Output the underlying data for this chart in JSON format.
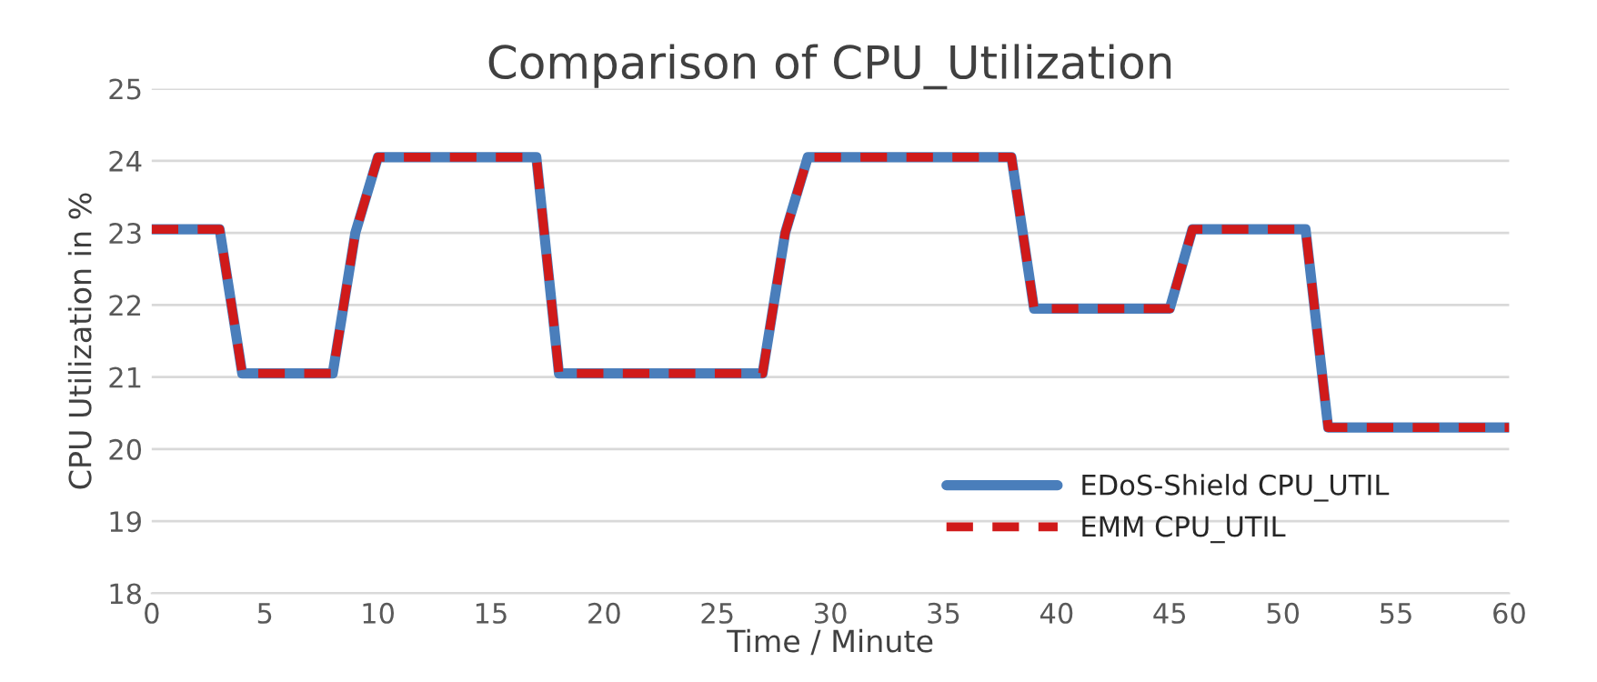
{
  "chart_data": {
    "type": "line",
    "title": "Comparison of CPU_Utilization",
    "xlabel": "Time / Minute",
    "ylabel": "CPU Utilization in %",
    "x": [
      0,
      3,
      4,
      8,
      9,
      10,
      17,
      18,
      27,
      28,
      29,
      38,
      39,
      45,
      46,
      51,
      52,
      60
    ],
    "series": [
      {
        "name": "EDoS-Shield CPU_UTIL",
        "color": "#4a7ebb",
        "line_style": "solid",
        "values": [
          23.05,
          23.05,
          21.05,
          21.05,
          23,
          24.05,
          24.05,
          21.05,
          21.05,
          23,
          24.05,
          24.05,
          21.95,
          21.95,
          23.05,
          23.05,
          20.3,
          20.3
        ]
      },
      {
        "name": "EMM CPU_UTIL",
        "color": "#d01a1a",
        "line_style": "dashed",
        "values": [
          23.05,
          23.05,
          21.05,
          21.05,
          23,
          24.05,
          24.05,
          21.05,
          21.05,
          23,
          24.05,
          24.05,
          21.95,
          21.95,
          23.05,
          23.05,
          20.3,
          20.3
        ]
      }
    ],
    "xlim": [
      0,
      60
    ],
    "xticks": [
      0,
      5,
      10,
      15,
      20,
      25,
      30,
      35,
      40,
      45,
      50,
      55,
      60
    ],
    "ylim": [
      18,
      25
    ],
    "yticks": [
      18,
      19,
      20,
      21,
      22,
      23,
      24,
      25
    ],
    "grid": "y",
    "legend": "bottom right",
    "marker": "none"
  }
}
